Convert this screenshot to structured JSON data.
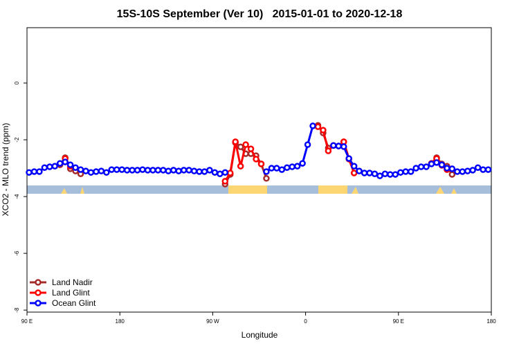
{
  "chart_data": {
    "type": "line",
    "title": "15S-10S September (Ver 10)   2015-01-01 to 2020-12-18",
    "x_label": "Longitude",
    "y_label": "XCO2 - MLO trend (ppm)",
    "x": [
      92,
      97,
      102,
      107,
      112,
      117,
      122,
      127,
      132,
      137,
      142,
      147,
      152,
      157,
      162,
      167,
      172,
      177,
      182,
      187,
      192,
      197,
      202,
      207,
      212,
      217,
      222,
      227,
      232,
      237,
      242,
      247,
      252,
      257,
      262,
      267,
      272,
      277,
      282,
      287,
      292,
      297,
      302,
      307,
      312,
      317,
      322,
      327,
      332,
      337,
      342,
      347,
      352,
      357,
      362,
      367,
      372,
      377,
      382,
      387,
      392,
      397,
      402,
      407,
      412,
      417,
      422,
      427,
      432,
      437,
      442,
      447,
      452,
      457,
      462,
      467,
      472,
      477,
      482,
      487,
      492,
      497,
      502,
      507,
      512,
      517,
      522,
      527,
      532,
      537
    ],
    "xlim": [
      90,
      540
    ],
    "xticks": [
      {
        "value": 90,
        "label": "90 E"
      },
      180,
      {
        "value": 270,
        "label": "90 W"
      },
      {
        "value": 360,
        "label": "0"
      },
      {
        "value": 450,
        "label": "90 E"
      },
      {
        "value": 540,
        "label": "180"
      }
    ],
    "ylim": [
      -8.07,
      1.95
    ],
    "yticks": [
      0,
      -2,
      -4,
      -6,
      -8
    ],
    "legend": "bottomleft",
    "series": [
      {
        "name": "Land Nadir",
        "color": "#a52a2a",
        "values": [
          null,
          null,
          null,
          null,
          null,
          null,
          -2.88,
          -2.63,
          -3.02,
          -3.1,
          -3.2,
          null,
          null,
          null,
          null,
          null,
          null,
          null,
          null,
          null,
          null,
          null,
          null,
          null,
          null,
          null,
          null,
          null,
          null,
          null,
          null,
          null,
          null,
          null,
          null,
          null,
          null,
          null,
          -3.56,
          -3.22,
          -2.1,
          -2.25,
          -2.49,
          -2.49,
          -2.56,
          -2.85,
          -3.36,
          null,
          null,
          null,
          null,
          null,
          null,
          null,
          null,
          null,
          -1.49,
          -1.76,
          -2.29,
          -2.2,
          -2.22,
          -2.07,
          -2.66,
          null,
          null,
          null,
          null,
          null,
          null,
          null,
          null,
          null,
          null,
          null,
          null,
          null,
          null,
          null,
          -2.83,
          -2.63,
          -2.85,
          -2.93,
          -3.22,
          null,
          null,
          null,
          null,
          null,
          null,
          null
        ]
      },
      {
        "name": "Land Glint",
        "color": "#ff0000",
        "values": [
          null,
          null,
          null,
          null,
          null,
          null,
          null,
          -2.66,
          -2.93,
          null,
          null,
          null,
          null,
          null,
          null,
          null,
          null,
          null,
          null,
          null,
          null,
          null,
          null,
          null,
          null,
          null,
          null,
          null,
          null,
          null,
          null,
          null,
          null,
          null,
          null,
          null,
          null,
          null,
          -3.46,
          -3.17,
          -2.07,
          -2.93,
          -2.17,
          -2.32,
          -2.68,
          -2.85,
          null,
          null,
          null,
          null,
          null,
          null,
          null,
          null,
          null,
          null,
          -1.54,
          -1.66,
          -2.39,
          -2.2,
          -2.22,
          -2.07,
          -2.68,
          -3.17,
          null,
          null,
          null,
          null,
          null,
          null,
          null,
          null,
          null,
          null,
          null,
          null,
          null,
          null,
          -2.83,
          -2.66,
          -2.9,
          -3.05,
          null,
          null,
          null,
          null,
          null,
          null,
          null,
          null
        ]
      },
      {
        "name": "Ocean Glint",
        "color": "#0000ff",
        "values": [
          -3.15,
          -3.12,
          -3.12,
          -2.98,
          -2.95,
          -2.93,
          -2.83,
          -2.78,
          -2.88,
          -2.98,
          -3.05,
          -3.1,
          -3.15,
          -3.12,
          -3.1,
          -3.15,
          -3.05,
          -3.05,
          -3.05,
          -3.07,
          -3.07,
          -3.07,
          -3.05,
          -3.07,
          -3.07,
          -3.07,
          -3.07,
          -3.1,
          -3.07,
          -3.1,
          -3.07,
          -3.07,
          -3.1,
          -3.12,
          -3.12,
          -3.07,
          -3.15,
          -3.2,
          -3.15,
          null,
          null,
          null,
          null,
          null,
          null,
          null,
          -3.12,
          -3.0,
          -3.0,
          -3.05,
          -2.98,
          -2.95,
          -2.93,
          -2.83,
          -2.17,
          -1.51,
          null,
          null,
          null,
          -2.2,
          -2.22,
          -2.24,
          -2.66,
          -2.93,
          -3.1,
          -3.17,
          -3.17,
          -3.2,
          -3.27,
          -3.2,
          -3.22,
          -3.22,
          -3.15,
          -3.12,
          -3.12,
          -3.0,
          -2.95,
          -2.95,
          -2.85,
          -2.8,
          -2.88,
          -3.0,
          -3.02,
          -3.12,
          -3.12,
          -3.1,
          -3.07,
          -2.98,
          -3.05,
          -3.05
        ]
      }
    ]
  }
}
